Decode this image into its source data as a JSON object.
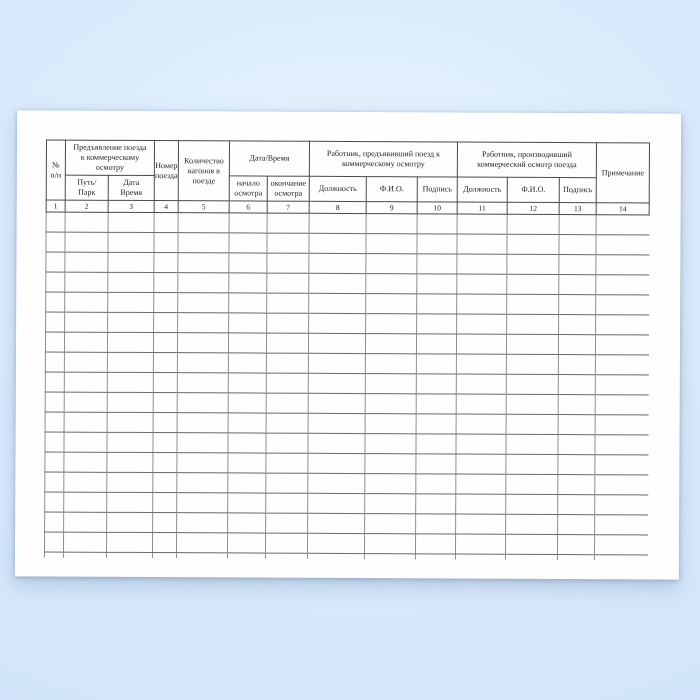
{
  "document": {
    "background_color": "#d7e9fc",
    "paper_color": "#fefefe",
    "header_line_color": "#4a4a4a",
    "grid_horizontal_color": "#6a6a6a",
    "grid_vertical_color": "#8f8f8f",
    "text_color": "#1e1e1e"
  },
  "table": {
    "header": {
      "row_no": "№\nп/п",
      "presentation_group": "Предъявление поезда\nк коммерческому\nосмотру",
      "track_park": "Путь/\nПарк",
      "date_time": "Дата\nВремя",
      "train_number": "Номер\nпоезда",
      "wagons_in_train": "Количество\nвагонов в\nпоезде",
      "datetime_group": "Дата/Время",
      "inspection_start": "начало\nосмотра",
      "inspection_end": "окончание\nосмотра",
      "presenter_group": "Работник, предъявивший поезд к\nкоммерческому осмотру",
      "presenter_position": "Должность",
      "presenter_name": "Ф.И.О.",
      "presenter_signature": "Подпись",
      "inspector_group": "Работник, производивший\nкоммерческий осмотр поезда",
      "inspector_position": "Должность",
      "inspector_name": "Ф.И.О.",
      "inspector_signature": "Подпись",
      "note": "Примечание"
    },
    "column_numbers": [
      "1",
      "2",
      "3",
      "4",
      "5",
      "6",
      "7",
      "8",
      "9",
      "10",
      "11",
      "12",
      "13",
      "14"
    ],
    "body": {
      "empty_row_count": 17,
      "column_count": 14,
      "cell_value": ""
    }
  }
}
